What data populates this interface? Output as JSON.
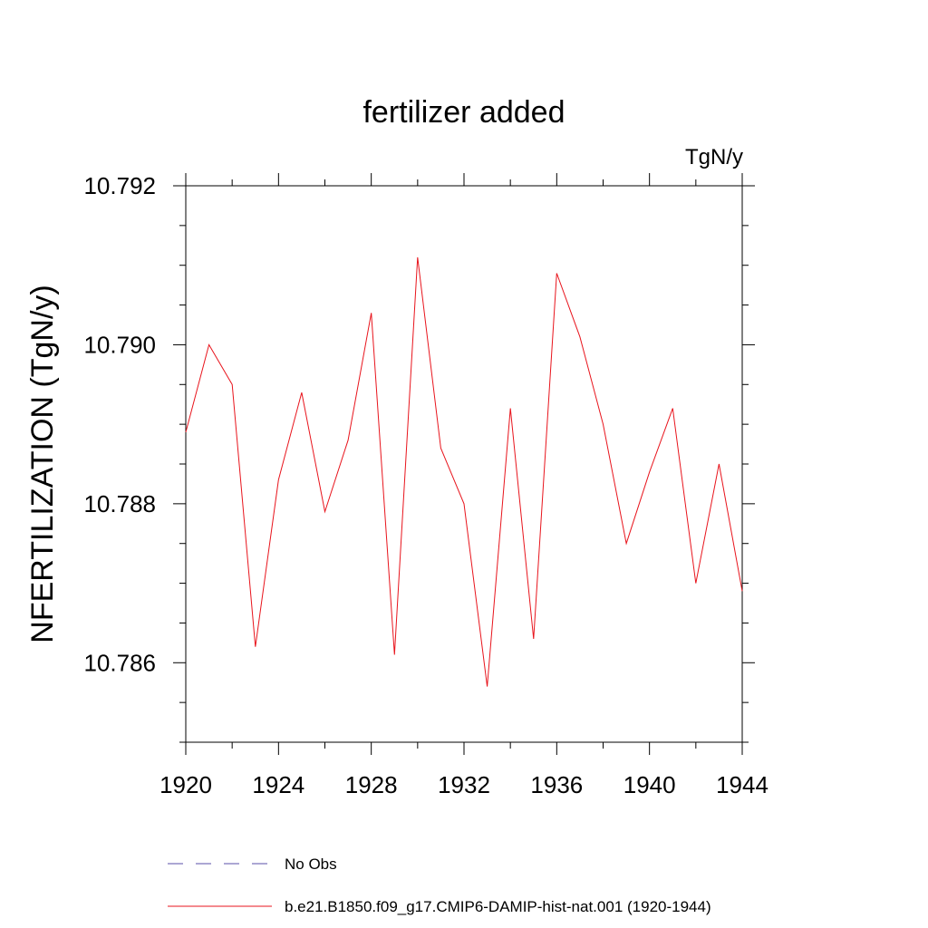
{
  "chart_data": {
    "type": "line",
    "title": "fertilizer added",
    "units_label": "TgN/y",
    "xlabel": "",
    "ylabel": "NFERTILIZATION  (TgN/y)",
    "xlim": [
      1920,
      1944
    ],
    "ylim": [
      10.785,
      10.792
    ],
    "x_ticks": [
      1920,
      1924,
      1928,
      1932,
      1936,
      1940,
      1944
    ],
    "x_tick_labels": [
      "1920",
      "1924",
      "1928",
      "1932",
      "1936",
      "1940",
      "1944"
    ],
    "y_ticks": [
      10.786,
      10.788,
      10.79,
      10.792
    ],
    "y_tick_labels": [
      "10.786",
      "10.788",
      "10.790",
      "10.792"
    ],
    "grid": false,
    "legend": {
      "placement": "bottom",
      "entries": [
        {
          "label": "No Obs",
          "color": "#5a4fa8",
          "style": "dashed"
        },
        {
          "label": "b.e21.B1850.f09_g17.CMIP6-DAMIP-hist-nat.001 (1920-1944)",
          "color": "#e8141c",
          "style": "solid"
        }
      ]
    },
    "series": [
      {
        "color": "#e8141c",
        "x": [
          1920,
          1921,
          1922,
          1923,
          1924,
          1925,
          1926,
          1927,
          1928,
          1929,
          1930,
          1931,
          1932,
          1933,
          1934,
          1935,
          1936,
          1937,
          1938,
          1939,
          1940,
          1941,
          1942,
          1943,
          1944
        ],
        "values": [
          10.7889,
          10.79,
          10.7895,
          10.7862,
          10.7883,
          10.7894,
          10.7879,
          10.7888,
          10.7904,
          10.7861,
          10.7911,
          10.7887,
          10.788,
          10.7857,
          10.7892,
          10.7863,
          10.7909,
          10.7901,
          10.789,
          10.7875,
          10.7884,
          10.7892,
          10.787,
          10.7885,
          10.7869
        ]
      }
    ]
  }
}
